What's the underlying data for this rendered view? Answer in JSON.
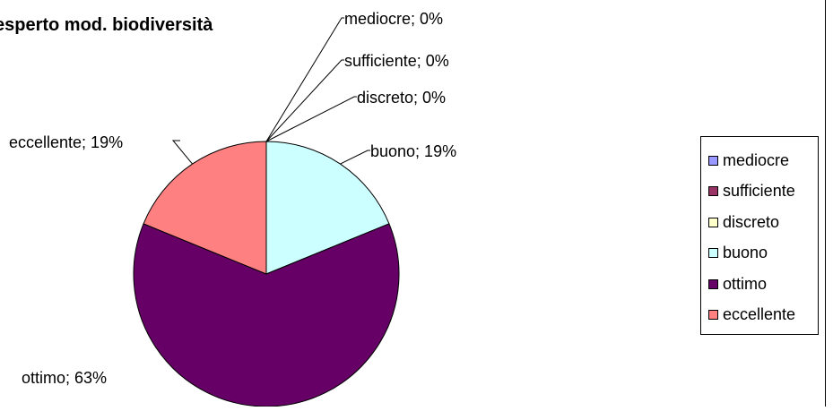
{
  "chart_data": {
    "type": "pie",
    "title": "esperto mod. biodiversità",
    "slices": [
      {
        "name": "mediocre",
        "value": 0,
        "label": "mediocre; 0%",
        "color": "#9999ff"
      },
      {
        "name": "sufficiente",
        "value": 0,
        "label": "sufficiente; 0%",
        "color": "#993366"
      },
      {
        "name": "discreto",
        "value": 0,
        "label": "discreto; 0%",
        "color": "#ffffcc"
      },
      {
        "name": "buono",
        "value": 19,
        "label": "buono; 19%",
        "color": "#ccffff"
      },
      {
        "name": "ottimo",
        "value": 63,
        "label": "ottimo; 63%",
        "color": "#660066"
      },
      {
        "name": "eccellente",
        "value": 19,
        "label": "eccellente; 19%",
        "color": "#ff8080"
      }
    ],
    "legend_position": "right"
  }
}
